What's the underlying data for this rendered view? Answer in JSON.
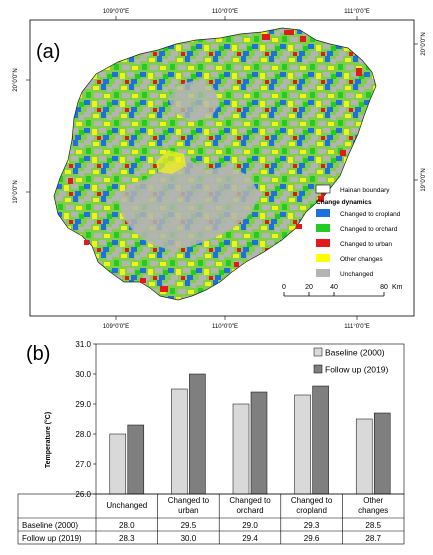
{
  "map": {
    "panel_label": "(a)",
    "top_ticks": [
      "109°0'0\"E",
      "110°0'0\"E",
      "111°0'0\"E"
    ],
    "bottom_ticks": [
      "109°0'0\"E",
      "110°0'0\"E",
      "111°0'0\"E"
    ],
    "left_ticks": [
      "20°0'0\"N",
      "19°0'0\"N"
    ],
    "right_ticks": [
      "20°0'0\"N",
      "19°0'0\"N"
    ],
    "legend": {
      "boundary_label": "Hainan boundary",
      "title": "Change dynamics",
      "items": [
        {
          "label": "Changed to cropland",
          "color": "#1f6fe0"
        },
        {
          "label": "Changed to orchard",
          "color": "#22cc22"
        },
        {
          "label": "Changed to urban",
          "color": "#e31a1c"
        },
        {
          "label": "Other changes",
          "color": "#ffff00"
        },
        {
          "label": "Unchanged",
          "color": "#b4b4b4"
        }
      ]
    },
    "scalebar": {
      "ticks": [
        "0",
        "20",
        "40",
        "80"
      ],
      "unit": "Km"
    }
  },
  "chart_data": {
    "type": "bar",
    "panel_label": "(b)",
    "ylabel": "Temperature (°C)",
    "ylim": [
      26.0,
      31.0
    ],
    "yticks": [
      "26.0",
      "27.0",
      "28.0",
      "29.0",
      "30.0",
      "31.0"
    ],
    "categories": [
      "Unchanged",
      "Changed to urban",
      "Changed to orchard",
      "Changed to cropland",
      "Other changes"
    ],
    "series": [
      {
        "name": "Baseline (2000)",
        "color": "#d9d9d9",
        "values": [
          28.0,
          29.5,
          29.0,
          29.3,
          28.5
        ]
      },
      {
        "name": "Follow up (2019)",
        "color": "#7f7f7f",
        "values": [
          28.3,
          30.0,
          29.4,
          29.6,
          28.7
        ]
      }
    ],
    "legend_position": "top-right",
    "table_rows": [
      {
        "label": "Baseline (2000)",
        "values": [
          "28.0",
          "29.5",
          "29.0",
          "29.3",
          "28.5"
        ]
      },
      {
        "label": "Follow up (2019)",
        "values": [
          "28.3",
          "30.0",
          "29.4",
          "29.6",
          "28.7"
        ]
      }
    ]
  }
}
